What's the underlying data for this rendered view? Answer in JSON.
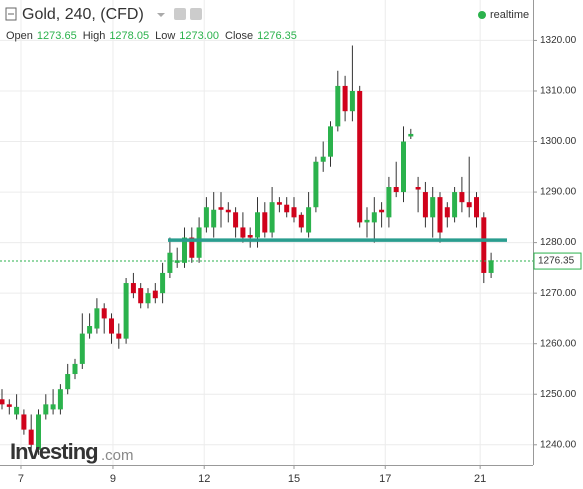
{
  "chart_data": {
    "type": "candlestick",
    "title": "Gold, 240, (CFD)",
    "status": "realtime",
    "readout": [
      {
        "name": "Open",
        "value": "1273.65"
      },
      {
        "name": "High",
        "value": "1278.05"
      },
      {
        "name": "Low",
        "value": "1273.00"
      },
      {
        "name": "Close",
        "value": "1276.35"
      }
    ],
    "logo": {
      "brand": "Investing",
      "suffix": ".com"
    },
    "categories": [
      null,
      null,
      null,
      null,
      null,
      null,
      null,
      null,
      null,
      null,
      null,
      null,
      null,
      null,
      null,
      null,
      null,
      null,
      null,
      null,
      null,
      null,
      null,
      null,
      null,
      null,
      null,
      null,
      null,
      null,
      null,
      null,
      null,
      null,
      null,
      null,
      null,
      null,
      null,
      null,
      null,
      null,
      null,
      null,
      null,
      null,
      null,
      null,
      null,
      null,
      null,
      null,
      null,
      null,
      null,
      null,
      null,
      null,
      null,
      null,
      null,
      null,
      null,
      null,
      null,
      null,
      null,
      null
    ],
    "open": [
      1249,
      1248,
      1246,
      1246,
      1243,
      1239,
      1246,
      1247,
      1247,
      1251,
      1254,
      1256,
      1262,
      1263,
      1267,
      1265,
      1262,
      1261,
      1272,
      1271,
      1268,
      1270.5,
      1270,
      1274,
      1276,
      1276,
      1281,
      1277,
      1283,
      1283,
      1287,
      1286.5,
      1286,
      1283,
      1281.5,
      1281,
      1286,
      1282,
      1288,
      1287.5,
      1287,
      1285.5,
      1282,
      1287,
      1296,
      1297,
      1303,
      1311,
      1306,
      1310,
      1284,
      1284,
      1286.5,
      1285,
      1291,
      1290,
      1301,
      1291,
      1290,
      1285,
      1289,
      1287,
      1285,
      1290,
      1288,
      1289,
      1285,
      1274
    ],
    "high": [
      1251,
      1249,
      1250,
      1247,
      1246,
      1247,
      1250,
      1251,
      1252,
      1256,
      1257,
      1266,
      1266,
      1269,
      1268,
      1266,
      1264,
      1273,
      1274,
      1272,
      1271,
      1272,
      1276,
      1281,
      1279,
      1283,
      1283,
      1285,
      1289,
      1290,
      1290,
      1288,
      1287,
      1286,
      1283,
      1289,
      1288,
      1291,
      1289,
      1289,
      1289,
      1286,
      1290,
      1297,
      1300,
      1304,
      1314,
      1313,
      1319,
      1311,
      1287,
      1289,
      1288,
      1293,
      1296,
      1303,
      1302.5,
      1293,
      1292,
      1291,
      1290,
      1288,
      1291,
      1293,
      1297,
      1290,
      1286,
      1278
    ],
    "low": [
      1247,
      1246,
      1245,
      1242,
      1239,
      1238,
      1245,
      1246,
      1246,
      1250,
      1253,
      1255,
      1261,
      1262,
      1262,
      1260,
      1259,
      1260,
      1269,
      1267,
      1267,
      1268,
      1268,
      1273,
      1275,
      1275,
      1276,
      1276,
      1282,
      1281,
      1283,
      1284,
      1281,
      1280,
      1279,
      1279,
      1281,
      1281,
      1286,
      1285,
      1284,
      1282,
      1281,
      1286,
      1294,
      1295,
      1302,
      1304,
      1304,
      1283,
      1281,
      1280,
      1283,
      1283,
      1289,
      1288,
      1300.5,
      1286,
      1283,
      1281,
      1280,
      1283,
      1284,
      1286,
      1285,
      1283,
      1272,
      1273
    ],
    "close": [
      1248,
      1247.5,
      1247.5,
      1243,
      1240,
      1246,
      1248,
      1248,
      1251,
      1254,
      1256,
      1262,
      1263.5,
      1267,
      1265,
      1262,
      1261,
      1272,
      1270,
      1268,
      1270,
      1269,
      1274,
      1278,
      1276.5,
      1281,
      1277,
      1283,
      1287,
      1286.5,
      1286.5,
      1286,
      1283,
      1281,
      1281,
      1286,
      1282,
      1288,
      1287.5,
      1286,
      1285,
      1283,
      1287,
      1296,
      1297,
      1303,
      1311,
      1306,
      1310,
      1284,
      1284.5,
      1286,
      1286,
      1291,
      1290,
      1300,
      1301.5,
      1290.5,
      1285,
      1289,
      1282,
      1285,
      1290,
      1288,
      1287,
      1285,
      1274,
      1276.5
    ],
    "up_color": "#2bb24c",
    "down_color": "#d0021b",
    "ylim": [
      1236,
      1328
    ],
    "yticks": [
      {
        "value": 1240,
        "label": "1240.00"
      },
      {
        "value": 1250,
        "label": "1250.00"
      },
      {
        "value": 1260,
        "label": "1260.00"
      },
      {
        "value": 1270,
        "label": "1270.00"
      },
      {
        "value": 1280,
        "label": "1280.00"
      },
      {
        "value": 1290,
        "label": "1290.00"
      },
      {
        "value": 1300,
        "label": "1300.00"
      },
      {
        "value": 1310,
        "label": "1310.00"
      },
      {
        "value": 1320,
        "label": "1320.00"
      }
    ],
    "xticks": [
      {
        "value": 2.6,
        "label": "7"
      },
      {
        "value": 15.2,
        "label": "9"
      },
      {
        "value": 27.7,
        "label": "12"
      },
      {
        "value": 40,
        "label": "15"
      },
      {
        "value": 52.5,
        "label": "17"
      },
      {
        "value": 65.5,
        "label": "21"
      }
    ],
    "level": {
      "value": 1280.5,
      "color": "#2a9d8f"
    },
    "last_price": {
      "value": 1276.35,
      "label": "1276.35",
      "color": "#2bb24c"
    },
    "grid": true
  }
}
